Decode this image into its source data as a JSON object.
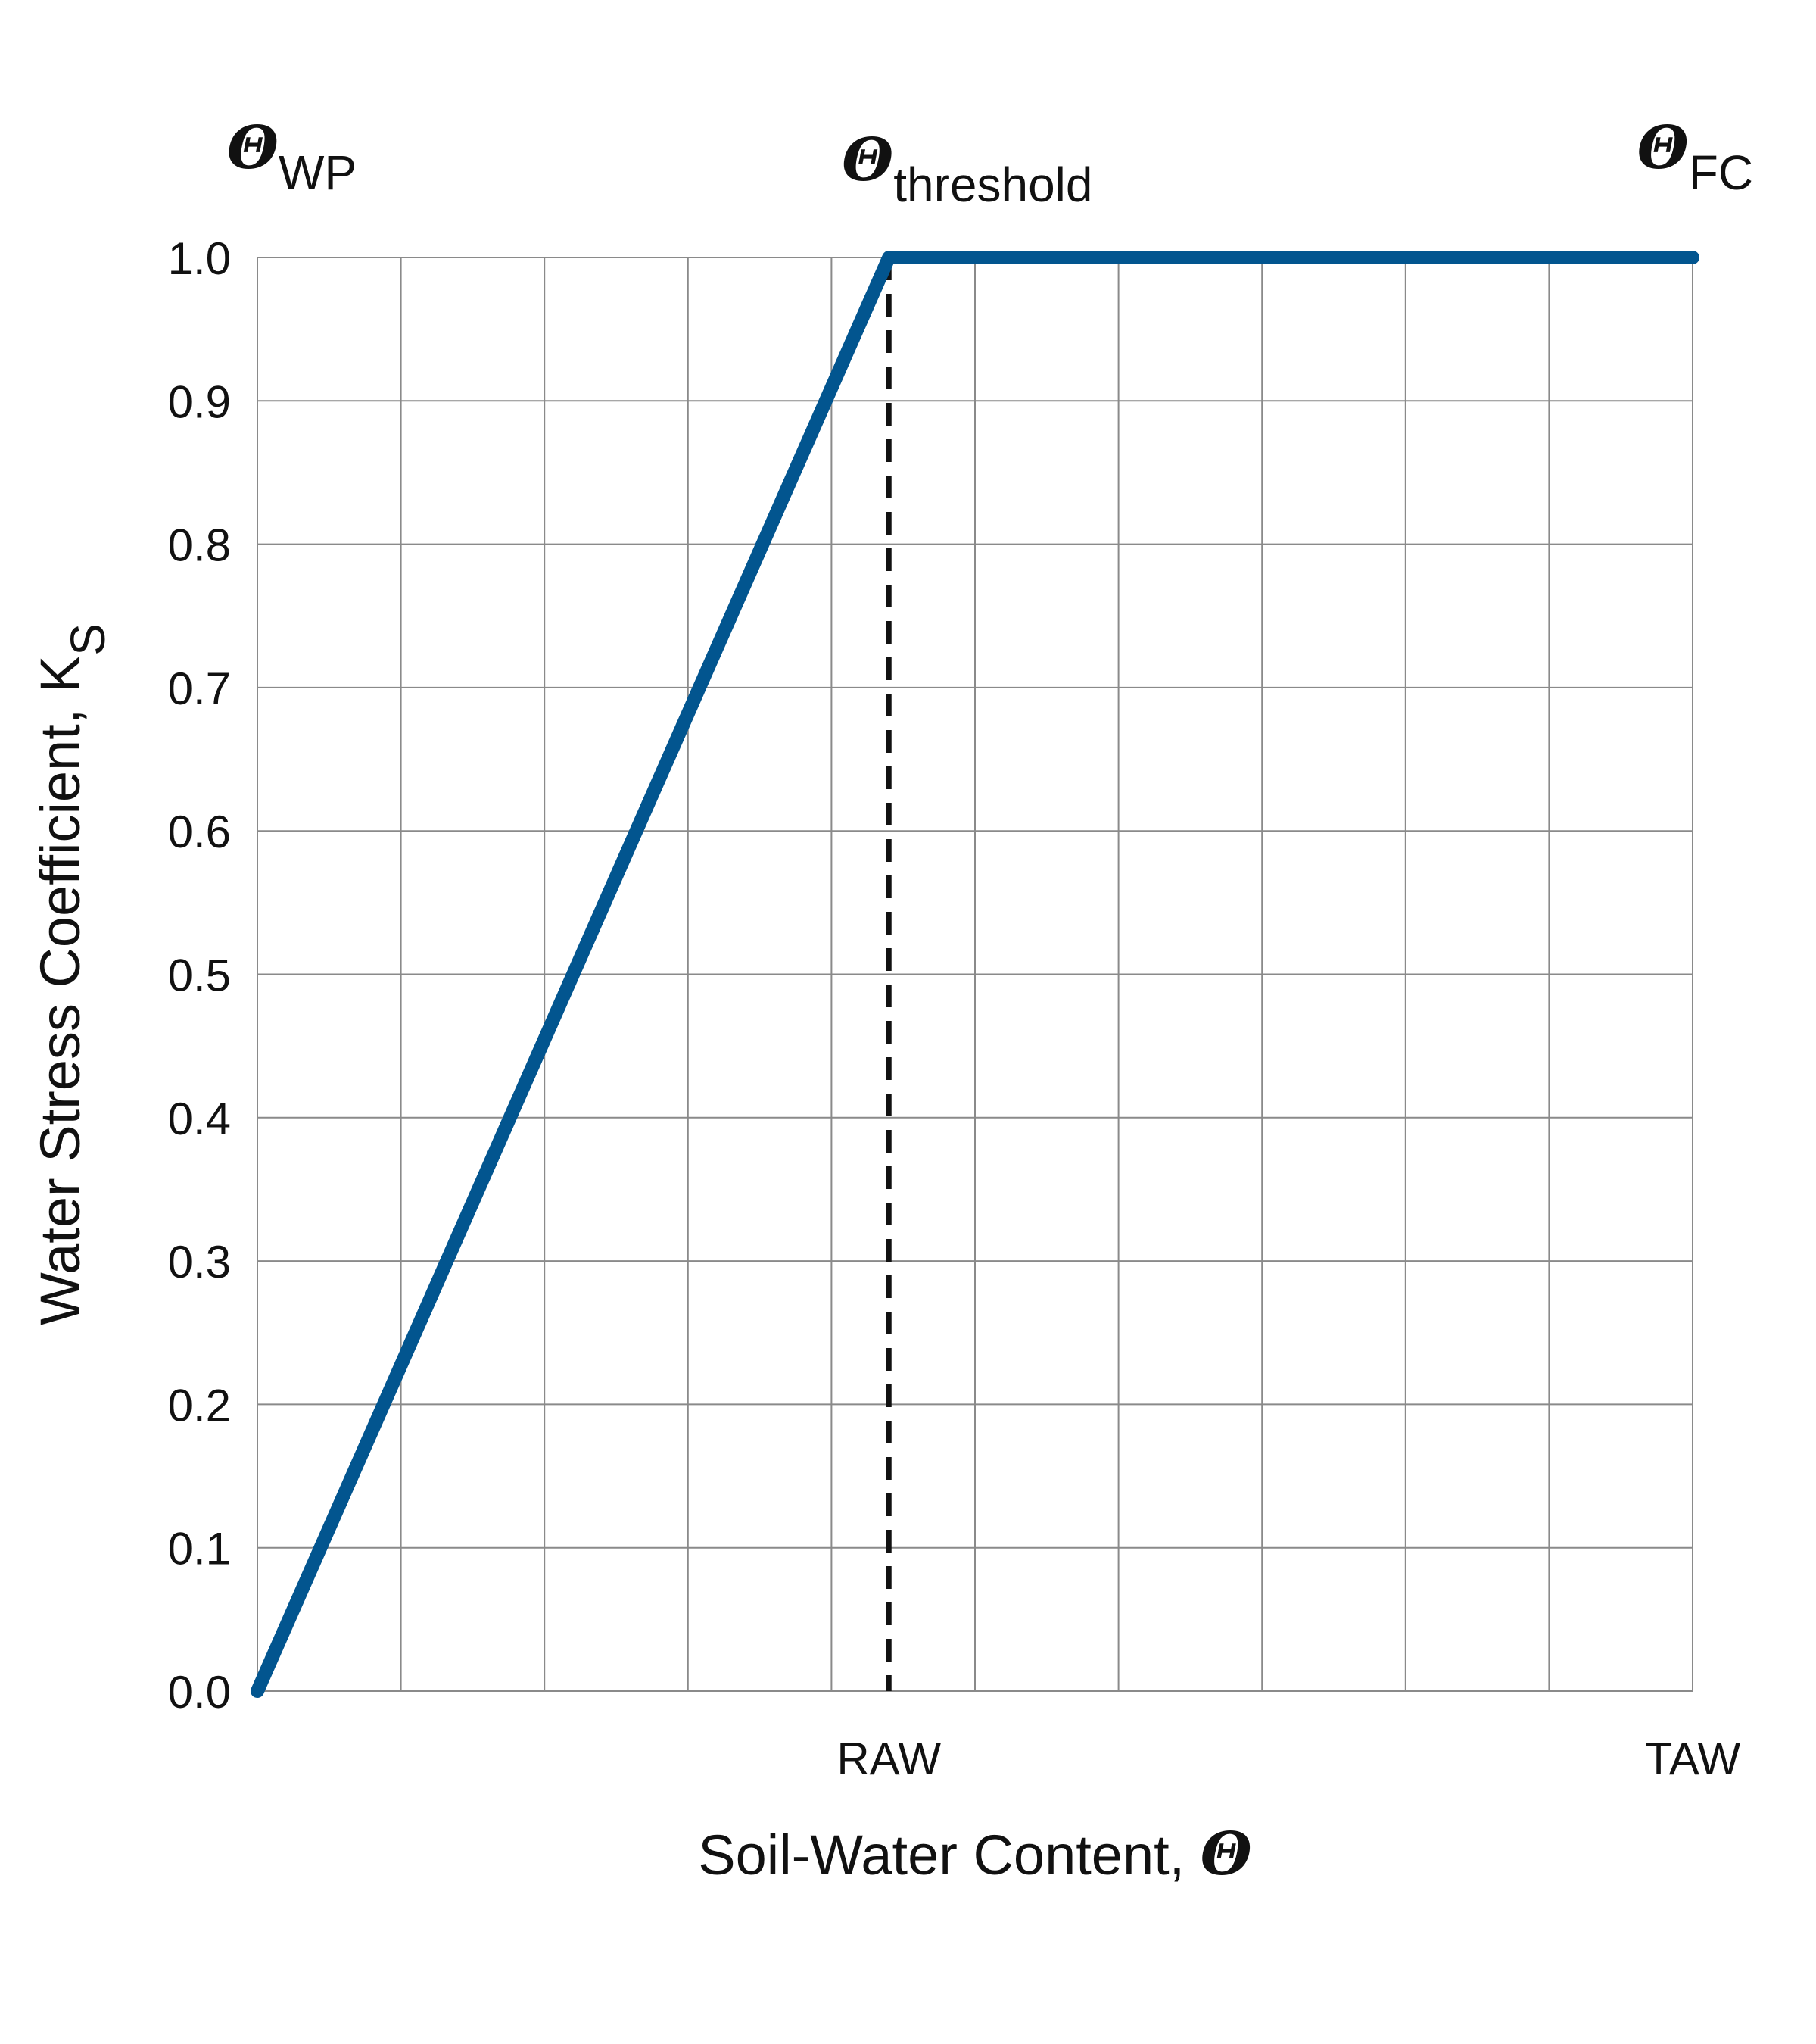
{
  "chart_data": {
    "type": "line",
    "xlabel": "Soil-Water Content, ",
    "xlabel_symbol": "Θ",
    "ylabel": "Water Stress Coefficient, K",
    "ylabel_subscript": "S",
    "x_ticks": [
      {
        "label": "RAW",
        "x": 0.44
      },
      {
        "label": "TAW",
        "x": 1.0
      }
    ],
    "y_ticks": [
      "0.0",
      "0.1",
      "0.2",
      "0.3",
      "0.4",
      "0.5",
      "0.6",
      "0.7",
      "0.8",
      "0.9",
      "1.0"
    ],
    "ylim": [
      0,
      1
    ],
    "xlim": [
      0,
      1
    ],
    "grid": true,
    "grid_divisions_x": 10,
    "top_labels": [
      {
        "symbol": "Θ",
        "subscript": "WP",
        "x": 0
      },
      {
        "symbol": "Θ",
        "subscript": "threshold",
        "x": 0.44
      },
      {
        "symbol": "Θ",
        "subscript": "FC",
        "x": 1.0
      }
    ],
    "series": [
      {
        "x": [
          0,
          0.44,
          1.0
        ],
        "y": [
          0,
          1.0,
          1.0
        ],
        "color": "#02558f"
      }
    ],
    "threshold_line": {
      "x": 0.44,
      "style": "dashed",
      "color": "#111111"
    }
  }
}
